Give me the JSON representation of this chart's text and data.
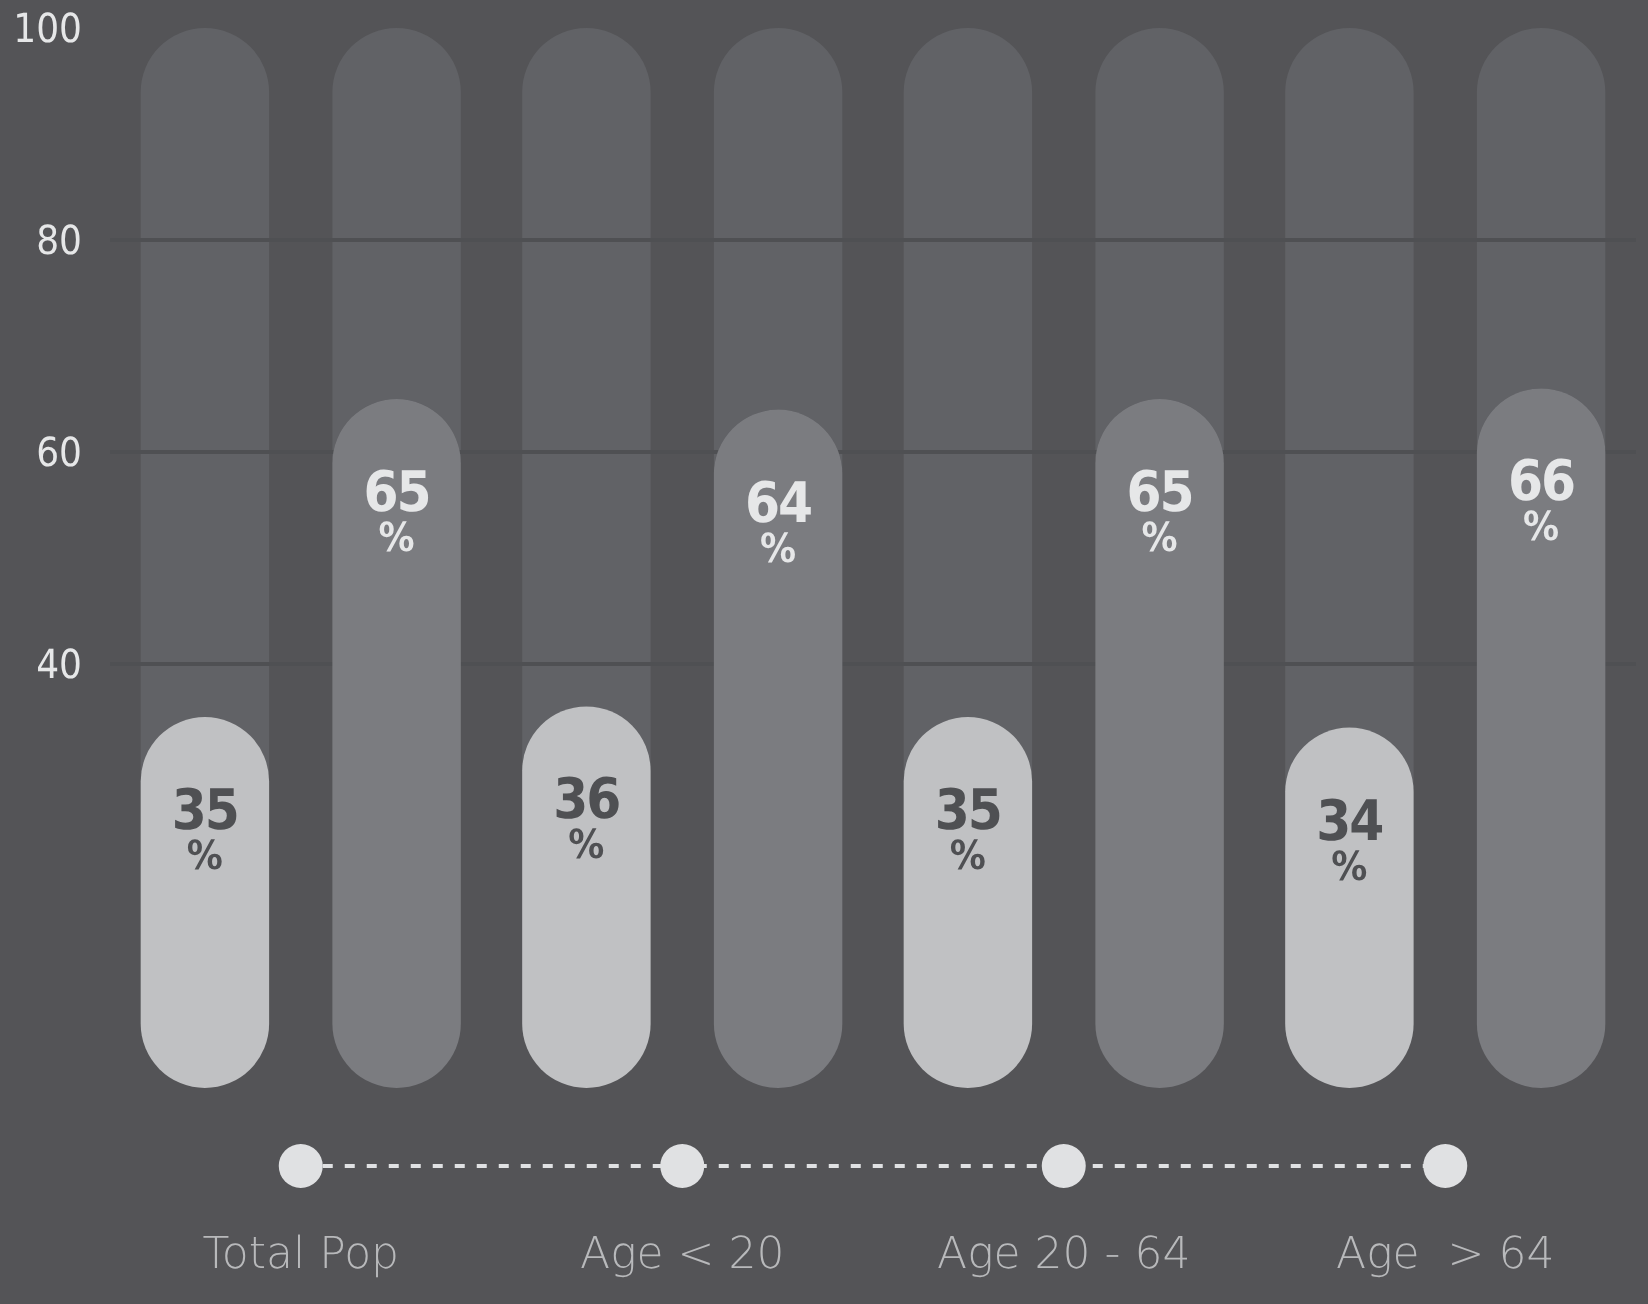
{
  "chart_data": {
    "type": "bar",
    "categories": [
      "Total Pop",
      "Age < 20",
      "Age 20 - 64",
      "Age  > 64"
    ],
    "series": [
      {
        "color": "#c0c1c3",
        "values": [
          35,
          36,
          35,
          34
        ],
        "value_labels": [
          "35%",
          "36%",
          "35%",
          "34%"
        ]
      },
      {
        "color": "#7b7c80",
        "values": [
          65,
          64,
          65,
          66
        ],
        "value_labels": [
          "65%",
          "64%",
          "65%",
          "66%"
        ]
      }
    ],
    "ylim": [
      0,
      100
    ],
    "yticks": [
      40,
      60,
      80,
      100
    ],
    "grid": "y"
  }
}
